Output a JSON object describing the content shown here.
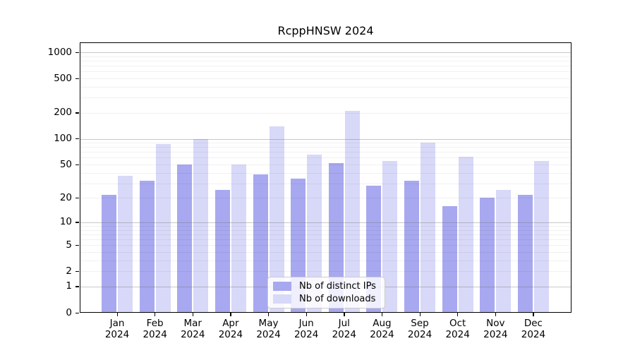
{
  "chart_data": {
    "type": "bar",
    "title": "RcppHNSW 2024",
    "categories": [
      "Jan",
      "Feb",
      "Mar",
      "Apr",
      "May",
      "Jun",
      "Jul",
      "Aug",
      "Sep",
      "Oct",
      "Nov",
      "Dec"
    ],
    "category_year": "2024",
    "series": [
      {
        "name": "Nb of distinct IPs",
        "key": "distinct-ips",
        "color": "#a8a8f0",
        "values": [
          22,
          32,
          50,
          25,
          38,
          34,
          52,
          28,
          32,
          16,
          20,
          22
        ]
      },
      {
        "name": "Nb of downloads",
        "key": "downloads",
        "color": "#d8d8f8",
        "values": [
          37,
          87,
          100,
          50,
          140,
          65,
          210,
          55,
          90,
          62,
          25,
          55
        ]
      }
    ],
    "scale": "log1p",
    "y_ticks": [
      0,
      1,
      2,
      5,
      10,
      20,
      50,
      100,
      200,
      500,
      1000
    ],
    "major_gridline_values": [
      1,
      10,
      100,
      1000
    ],
    "ylim": [
      0,
      1300
    ],
    "grid": "on",
    "legend_position": "bottom-center-inside",
    "colors": {
      "bar_distinct_ips": "#a8a8f0",
      "bar_downloads": "#d8d8f8",
      "axis": "#000000",
      "text": "#000000",
      "major_grid": "#c8c8c8",
      "minor_grid": "#efefef",
      "legend_border": "#cccccc",
      "background": "#ffffff"
    }
  }
}
